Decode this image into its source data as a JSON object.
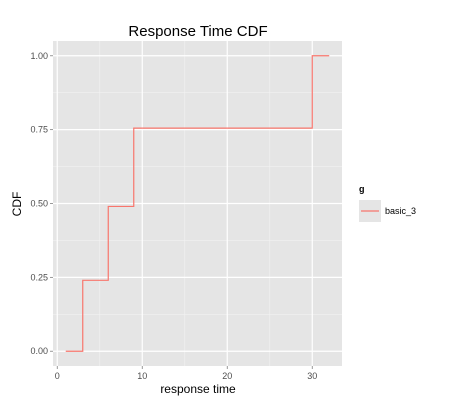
{
  "chart_data": {
    "type": "line",
    "step": true,
    "title": "Response Time CDF",
    "xlabel": "response time",
    "ylabel": "CDF",
    "xlim": [
      -0.5,
      33.5
    ],
    "ylim": [
      -0.05,
      1.05
    ],
    "x_ticks": [
      0,
      10,
      20,
      30
    ],
    "x_tick_labels": [
      "0",
      "10",
      "20",
      "30"
    ],
    "x_minor_ticks": [
      5,
      15,
      25
    ],
    "y_ticks": [
      0,
      0.25,
      0.5,
      0.75,
      1
    ],
    "y_tick_labels": [
      "0.00",
      "0.25",
      "0.50",
      "0.75",
      "1.00"
    ],
    "y_minor_ticks": [
      0.125,
      0.375,
      0.625,
      0.875
    ],
    "grid": true,
    "legend": {
      "title": "g",
      "position": "right"
    },
    "series": [
      {
        "name": "basic_3",
        "color": "#F8766D",
        "x": [
          1,
          3,
          6,
          9,
          30,
          32
        ],
        "y": [
          0,
          0.24,
          0.49,
          0.755,
          1.0,
          1.0
        ]
      }
    ]
  }
}
